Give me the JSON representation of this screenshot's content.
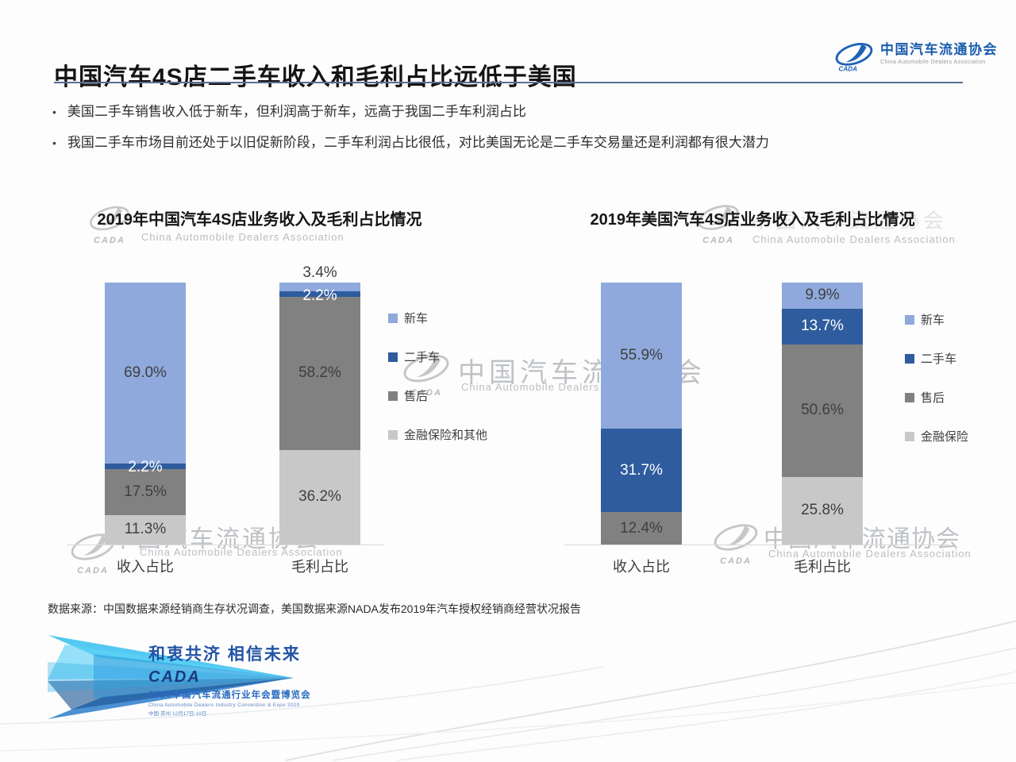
{
  "header": {
    "title": "中国汽车4S店二手车收入和毛利占比远低于美国",
    "org_logo": {
      "cn": "中国汽车流通协会",
      "en": "China Automobile Dealers Association"
    }
  },
  "bullets": [
    "美国二手车销售收入低于新车，但利润高于新车，远高于我国二手车利润占比",
    "我国二手车市场目前还处于以旧促新阶段，二手车利润占比很低，对比美国无论是二手车交易量还是利润都有很大潜力"
  ],
  "chart_data": [
    {
      "type": "bar",
      "stacked": true,
      "title": "2019年中国汽车4S店业务收入及毛利占比情况",
      "categories": [
        "收入占比",
        "毛利占比"
      ],
      "series": [
        {
          "name": "新车",
          "color": "#8fa9dc",
          "values": [
            69.0,
            3.4
          ]
        },
        {
          "name": "二手车",
          "color": "#2e5c9e",
          "values": [
            2.2,
            2.2
          ]
        },
        {
          "name": "售后",
          "color": "#818181",
          "values": [
            17.5,
            58.2
          ]
        },
        {
          "name": "金融保险和其他",
          "color": "#c8c8c8",
          "values": [
            11.3,
            36.2
          ]
        }
      ],
      "unit": "%",
      "ylim": [
        0,
        100
      ],
      "grid": false,
      "legend_position": "right"
    },
    {
      "type": "bar",
      "stacked": true,
      "title": "2019年美国汽车4S店业务收入及毛利占比情况",
      "categories": [
        "收入占比",
        "毛利占比"
      ],
      "series": [
        {
          "name": "新车",
          "color": "#8fa9dc",
          "values": [
            55.9,
            9.9
          ]
        },
        {
          "name": "二手车",
          "color": "#2e5c9e",
          "values": [
            31.7,
            13.7
          ]
        },
        {
          "name": "售后",
          "color": "#818181",
          "values": [
            12.4,
            50.6
          ]
        },
        {
          "name": "金融保险",
          "color": "#c8c8c8",
          "values": [
            0,
            25.8
          ]
        }
      ],
      "unit": "%",
      "ylim": [
        0,
        100
      ],
      "grid": false,
      "legend_position": "right"
    }
  ],
  "source": "数据来源：中国数据来源经销商生存状况调查，美国数据来源NADA发布2019年汽车授权经销商经营状况报告",
  "footer_logo": {
    "slogan": "和衷共济  相信未来",
    "brand": "CADA",
    "event": "2020中国汽车流通行业年会暨博览会",
    "event_en": "China Automobile Dealers Industry Convention & Expo 2020",
    "venue": "中国·苏州 12月17日-19日"
  },
  "watermark": {
    "cn": "中国汽车流通协会",
    "en": "China Automobile Dealers Association",
    "brand": "CADA"
  }
}
